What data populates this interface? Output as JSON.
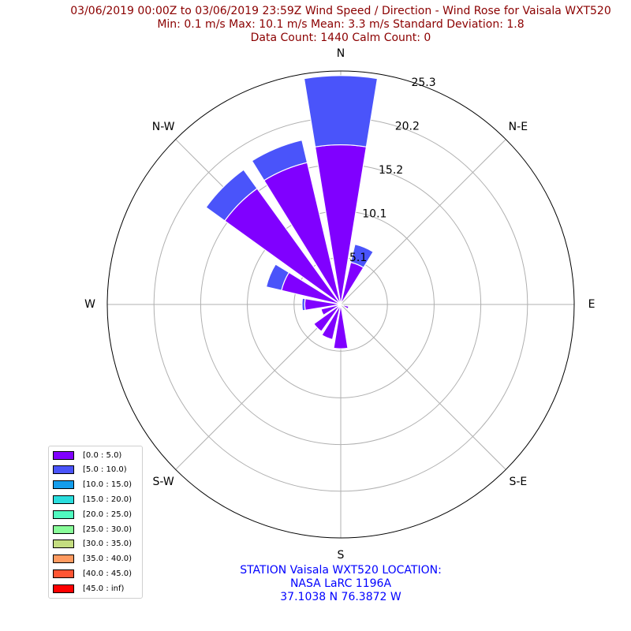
{
  "header": {
    "title_line1": "03/06/2019 00:00Z to 03/06/2019 23:59Z Wind Speed / Direction - Wind Rose for Vaisala WXT520",
    "title_line2": "Min: 0.1 m/s   Max: 10.1 m/s   Mean: 3.3 m/s  Standard Deviation: 1.8",
    "title_line3": "Data Count: 1440  Calm Count:  0"
  },
  "station": {
    "line1": "STATION Vaisala WXT520 LOCATION:",
    "line2": "NASA LaRC 1196A",
    "line3": "37.1038 N 76.3872 W"
  },
  "chart_data": {
    "type": "windrose",
    "direction_labels": [
      "N",
      "N-E",
      "E",
      "S-E",
      "S",
      "S-W",
      "W",
      "N-W"
    ],
    "radial_ticks": [
      "5.1",
      "10.1",
      "15.2",
      "20.2",
      "25.3"
    ],
    "radial_tick_values": [
      5.06,
      10.12,
      15.18,
      20.24,
      25.3
    ],
    "rmax": 25.3,
    "grid": true,
    "legend_position": "lower-left",
    "speed_bins": [
      {
        "label": "[0.0 : 5.0)",
        "color": "#8000ff"
      },
      {
        "label": "[5.0 : 10.0)",
        "color": "#4a54fa"
      },
      {
        "label": "[10.0 : 15.0)",
        "color": "#149dec"
      },
      {
        "label": "[15.0 : 20.0)",
        "color": "#2adddd"
      },
      {
        "label": "[20.0 : 25.0)",
        "color": "#50fbc0"
      },
      {
        "label": "[25.0 : 30.0)",
        "color": "#88fc99"
      },
      {
        "label": "[30.0 : 35.0)",
        "color": "#c4dd80"
      },
      {
        "label": "[35.0 : 40.0)",
        "color": "#ff9a60"
      },
      {
        "label": "[40.0 : 45.0)",
        "color": "#ff5533"
      },
      {
        "label": "[45.0 : inf)",
        "color": "#ff0000"
      }
    ],
    "directions_deg": [
      0,
      22.5,
      45,
      67.5,
      90,
      112.5,
      135,
      157.5,
      180,
      202.5,
      225,
      247.5,
      270,
      292.5,
      315,
      337.5
    ],
    "series": [
      {
        "name": "[0.0 : 5.0)",
        "values": [
          17.3,
          4.7,
          0,
          0,
          0,
          0.9,
          0,
          0,
          4.8,
          3.9,
          3.6,
          2.2,
          3.9,
          6.6,
          15.5,
          15.8
        ]
      },
      {
        "name": "[5.0 : 10.0)",
        "values": [
          7.5,
          2.0,
          0,
          0,
          0,
          0,
          0,
          0,
          0,
          0,
          0,
          0,
          0.3,
          1.7,
          2.5,
          2.5
        ]
      }
    ]
  }
}
